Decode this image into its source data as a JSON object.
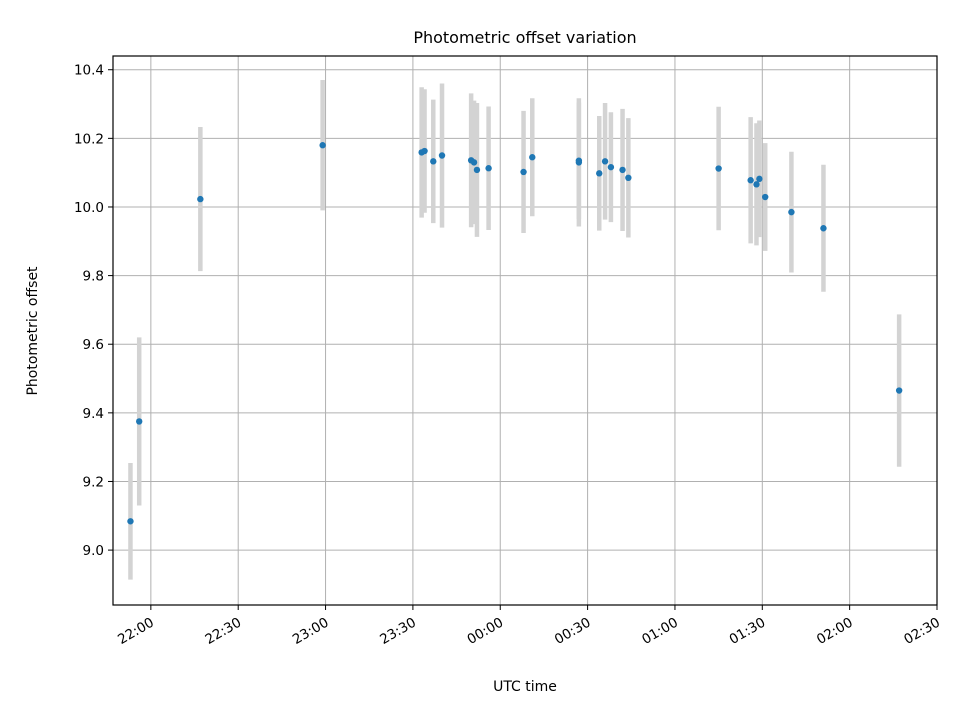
{
  "chart_data": {
    "type": "scatter",
    "title": "Photometric offset variation",
    "xlabel": "UTC time",
    "ylabel": "Photometric offset",
    "x_axis": {
      "type": "time",
      "range": [
        "21:47",
        "02:30"
      ],
      "ticks": [
        "22:00",
        "22:30",
        "23:00",
        "23:30",
        "00:00",
        "00:30",
        "01:00",
        "01:30",
        "02:00",
        "02:30"
      ]
    },
    "y_axis": {
      "range": [
        8.84,
        10.44
      ],
      "ticks": [
        "9.0",
        "9.2",
        "9.4",
        "9.6",
        "9.8",
        "10.0",
        "10.2",
        "10.4"
      ]
    },
    "grid": true,
    "colors": {
      "points": "#1f77b4",
      "errorbars": "#d3d3d3"
    },
    "series": [
      {
        "points": [
          {
            "time": "21:53",
            "y": 9.084,
            "err": 0.17
          },
          {
            "time": "21:56",
            "y": 9.375,
            "err": 0.245
          },
          {
            "time": "22:17",
            "y": 10.023,
            "err": 0.21
          },
          {
            "time": "22:59",
            "y": 10.18,
            "err": 0.19
          },
          {
            "time": "23:33",
            "y": 10.159,
            "err": 0.19
          },
          {
            "time": "23:34",
            "y": 10.163,
            "err": 0.18
          },
          {
            "time": "23:37",
            "y": 10.133,
            "err": 0.18
          },
          {
            "time": "23:40",
            "y": 10.15,
            "err": 0.21
          },
          {
            "time": "23:50",
            "y": 10.136,
            "err": 0.195
          },
          {
            "time": "23:51",
            "y": 10.13,
            "err": 0.18
          },
          {
            "time": "23:52",
            "y": 10.108,
            "err": 0.195
          },
          {
            "time": "23:56",
            "y": 10.113,
            "err": 0.18
          },
          {
            "time": "00:08",
            "y": 10.102,
            "err": 0.178
          },
          {
            "time": "00:11",
            "y": 10.145,
            "err": 0.172
          },
          {
            "time": "00:27",
            "y": 10.13,
            "err": 0.187
          },
          {
            "time": "00:27",
            "y": 10.135,
            "err": 0.17
          },
          {
            "time": "00:34",
            "y": 10.098,
            "err": 0.167
          },
          {
            "time": "00:36",
            "y": 10.133,
            "err": 0.17
          },
          {
            "time": "00:38",
            "y": 10.116,
            "err": 0.16
          },
          {
            "time": "00:42",
            "y": 10.108,
            "err": 0.178
          },
          {
            "time": "00:44",
            "y": 10.085,
            "err": 0.174
          },
          {
            "time": "01:15",
            "y": 10.112,
            "err": 0.18
          },
          {
            "time": "01:26",
            "y": 10.078,
            "err": 0.184
          },
          {
            "time": "01:28",
            "y": 10.066,
            "err": 0.178
          },
          {
            "time": "01:29",
            "y": 10.082,
            "err": 0.17
          },
          {
            "time": "01:31",
            "y": 10.029,
            "err": 0.157
          },
          {
            "time": "01:40",
            "y": 9.985,
            "err": 0.176
          },
          {
            "time": "01:51",
            "y": 9.938,
            "err": 0.185
          },
          {
            "time": "02:17",
            "y": 9.465,
            "err": 0.222
          }
        ]
      }
    ]
  }
}
